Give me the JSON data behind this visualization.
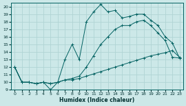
{
  "xlabel": "Humidex (Indice chaleur)",
  "background_color": "#cce8e8",
  "grid_color": "#b0d4d4",
  "line_color": "#006060",
  "xlim": [
    -0.5,
    23.5
  ],
  "ylim": [
    9,
    20.5
  ],
  "xticks": [
    0,
    1,
    2,
    3,
    4,
    5,
    6,
    7,
    8,
    9,
    10,
    11,
    12,
    13,
    14,
    15,
    16,
    17,
    18,
    19,
    20,
    21,
    22,
    23
  ],
  "yticks": [
    9,
    10,
    11,
    12,
    13,
    14,
    15,
    16,
    17,
    18,
    19,
    20
  ],
  "series": [
    {
      "x": [
        0,
        1,
        2,
        3,
        4,
        5,
        6,
        7,
        8,
        9,
        10,
        11,
        12,
        13,
        14,
        15,
        16,
        17,
        18,
        19,
        20,
        21,
        22,
        23
      ],
      "y": [
        12,
        10,
        10,
        9.8,
        10,
        9.0,
        10,
        13,
        15,
        13,
        18,
        19.3,
        20.3,
        19.3,
        19.5,
        18.5,
        18.7,
        19.0,
        19.0,
        18.2,
        17.5,
        16.0,
        15.2,
        13.2
      ]
    },
    {
      "x": [
        0,
        1,
        2,
        3,
        4,
        5,
        6,
        7,
        8,
        9,
        10,
        11,
        12,
        13,
        14,
        15,
        16,
        17,
        18,
        19,
        20,
        21,
        22,
        23
      ],
      "y": [
        12,
        10,
        10,
        9.8,
        10,
        9.8,
        10,
        10.3,
        10.3,
        10.5,
        10.8,
        11.1,
        11.4,
        11.7,
        12.0,
        12.3,
        12.6,
        12.9,
        13.2,
        13.5,
        13.7,
        13.9,
        14.2,
        13.3
      ]
    },
    {
      "x": [
        0,
        1,
        2,
        3,
        4,
        5,
        6,
        7,
        8,
        9,
        10,
        11,
        12,
        13,
        14,
        15,
        16,
        17,
        18,
        19,
        20,
        21,
        22,
        23
      ],
      "y": [
        12,
        10,
        10,
        9.8,
        10,
        9.8,
        10,
        10.3,
        10.5,
        10.8,
        12.0,
        13.5,
        15.0,
        16.0,
        17.0,
        17.5,
        17.5,
        18.0,
        18.2,
        17.5,
        16.5,
        15.5,
        13.3,
        13.2
      ]
    }
  ]
}
